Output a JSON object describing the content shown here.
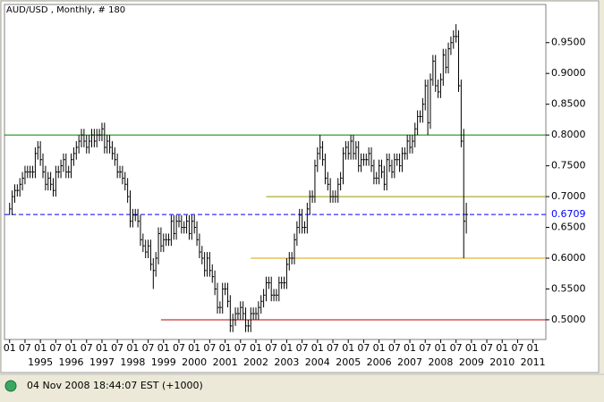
{
  "chart_data": {
    "type": "ohlc",
    "title": "AUD/USD , Monthly, # 180",
    "footer": "04 Nov 2008 18:44:07  EST (+1000)",
    "x": [
      "1994-01",
      "1994-02",
      "1994-03",
      "1994-04",
      "1994-05",
      "1994-06",
      "1994-07",
      "1994-08",
      "1994-09",
      "1994-10",
      "1994-11",
      "1994-12",
      "1995-01",
      "1995-02",
      "1995-03",
      "1995-04",
      "1995-05",
      "1995-06",
      "1995-07",
      "1995-08",
      "1995-09",
      "1995-10",
      "1995-11",
      "1995-12",
      "1996-01",
      "1996-02",
      "1996-03",
      "1996-04",
      "1996-05",
      "1996-06",
      "1996-07",
      "1996-08",
      "1996-09",
      "1996-10",
      "1996-11",
      "1996-12",
      "1997-01",
      "1997-02",
      "1997-03",
      "1997-04",
      "1997-05",
      "1997-06",
      "1997-07",
      "1997-08",
      "1997-09",
      "1997-10",
      "1997-11",
      "1997-12",
      "1998-01",
      "1998-02",
      "1998-03",
      "1998-04",
      "1998-05",
      "1998-06",
      "1998-07",
      "1998-08",
      "1998-09",
      "1998-10",
      "1998-11",
      "1998-12",
      "1999-01",
      "1999-02",
      "1999-03",
      "1999-04",
      "1999-05",
      "1999-06",
      "1999-07",
      "1999-08",
      "1999-09",
      "1999-10",
      "1999-11",
      "1999-12",
      "2000-01",
      "2000-02",
      "2000-03",
      "2000-04",
      "2000-05",
      "2000-06",
      "2000-07",
      "2000-08",
      "2000-09",
      "2000-10",
      "2000-11",
      "2000-12",
      "2001-01",
      "2001-02",
      "2001-03",
      "2001-04",
      "2001-05",
      "2001-06",
      "2001-07",
      "2001-08",
      "2001-09",
      "2001-10",
      "2001-11",
      "2001-12",
      "2002-01",
      "2002-02",
      "2002-03",
      "2002-04",
      "2002-05",
      "2002-06",
      "2002-07",
      "2002-08",
      "2002-09",
      "2002-10",
      "2002-11",
      "2002-12",
      "2003-01",
      "2003-02",
      "2003-03",
      "2003-04",
      "2003-05",
      "2003-06",
      "2003-07",
      "2003-08",
      "2003-09",
      "2003-10",
      "2003-11",
      "2003-12",
      "2004-01",
      "2004-02",
      "2004-03",
      "2004-04",
      "2004-05",
      "2004-06",
      "2004-07",
      "2004-08",
      "2004-09",
      "2004-10",
      "2004-11",
      "2004-12",
      "2005-01",
      "2005-02",
      "2005-03",
      "2005-04",
      "2005-05",
      "2005-06",
      "2005-07",
      "2005-08",
      "2005-09",
      "2005-10",
      "2005-11",
      "2005-12",
      "2006-01",
      "2006-02",
      "2006-03",
      "2006-04",
      "2006-05",
      "2006-06",
      "2006-07",
      "2006-08",
      "2006-09",
      "2006-10",
      "2006-11",
      "2006-12",
      "2007-01",
      "2007-02",
      "2007-03",
      "2007-04",
      "2007-05",
      "2007-06",
      "2007-07",
      "2007-08",
      "2007-09",
      "2007-10",
      "2007-11",
      "2007-12",
      "2008-01",
      "2008-02",
      "2008-03",
      "2008-04",
      "2008-05",
      "2008-06",
      "2008-07",
      "2008-08",
      "2008-09",
      "2008-10",
      "2008-11"
    ],
    "high": [
      0.69,
      0.71,
      0.72,
      0.72,
      0.73,
      0.74,
      0.75,
      0.75,
      0.75,
      0.75,
      0.78,
      0.79,
      0.79,
      0.77,
      0.75,
      0.74,
      0.74,
      0.73,
      0.75,
      0.75,
      0.76,
      0.77,
      0.77,
      0.75,
      0.77,
      0.78,
      0.79,
      0.8,
      0.81,
      0.81,
      0.8,
      0.8,
      0.81,
      0.81,
      0.81,
      0.81,
      0.82,
      0.82,
      0.8,
      0.8,
      0.79,
      0.78,
      0.77,
      0.75,
      0.75,
      0.74,
      0.73,
      0.71,
      0.68,
      0.68,
      0.68,
      0.67,
      0.64,
      0.63,
      0.63,
      0.63,
      0.6,
      0.61,
      0.65,
      0.65,
      0.64,
      0.64,
      0.64,
      0.67,
      0.67,
      0.67,
      0.67,
      0.67,
      0.66,
      0.67,
      0.67,
      0.67,
      0.67,
      0.66,
      0.64,
      0.62,
      0.61,
      0.61,
      0.61,
      0.59,
      0.58,
      0.56,
      0.53,
      0.56,
      0.56,
      0.56,
      0.54,
      0.51,
      0.52,
      0.52,
      0.53,
      0.53,
      0.52,
      0.5,
      0.52,
      0.52,
      0.52,
      0.53,
      0.54,
      0.55,
      0.57,
      0.57,
      0.57,
      0.55,
      0.55,
      0.57,
      0.57,
      0.57,
      0.6,
      0.61,
      0.61,
      0.64,
      0.66,
      0.68,
      0.68,
      0.66,
      0.69,
      0.71,
      0.71,
      0.76,
      0.78,
      0.8,
      0.79,
      0.77,
      0.74,
      0.73,
      0.71,
      0.71,
      0.73,
      0.74,
      0.78,
      0.79,
      0.79,
      0.8,
      0.8,
      0.79,
      0.79,
      0.77,
      0.77,
      0.77,
      0.78,
      0.78,
      0.76,
      0.74,
      0.76,
      0.76,
      0.75,
      0.77,
      0.77,
      0.76,
      0.77,
      0.77,
      0.77,
      0.78,
      0.78,
      0.8,
      0.8,
      0.8,
      0.82,
      0.84,
      0.84,
      0.86,
      0.89,
      0.89,
      0.9,
      0.93,
      0.93,
      0.89,
      0.9,
      0.94,
      0.94,
      0.95,
      0.96,
      0.97,
      0.98,
      0.97,
      0.89,
      0.81,
      0.69
    ],
    "low": [
      0.67,
      0.67,
      0.69,
      0.7,
      0.7,
      0.71,
      0.72,
      0.73,
      0.73,
      0.73,
      0.73,
      0.76,
      0.75,
      0.73,
      0.71,
      0.71,
      0.71,
      0.7,
      0.7,
      0.73,
      0.73,
      0.74,
      0.73,
      0.73,
      0.73,
      0.75,
      0.76,
      0.77,
      0.78,
      0.78,
      0.77,
      0.77,
      0.78,
      0.78,
      0.78,
      0.79,
      0.79,
      0.77,
      0.77,
      0.77,
      0.76,
      0.75,
      0.73,
      0.73,
      0.72,
      0.71,
      0.69,
      0.65,
      0.65,
      0.66,
      0.65,
      0.62,
      0.61,
      0.6,
      0.6,
      0.58,
      0.55,
      0.57,
      0.59,
      0.61,
      0.61,
      0.62,
      0.62,
      0.62,
      0.63,
      0.63,
      0.65,
      0.64,
      0.64,
      0.64,
      0.63,
      0.63,
      0.64,
      0.62,
      0.6,
      0.59,
      0.57,
      0.57,
      0.57,
      0.56,
      0.54,
      0.51,
      0.51,
      0.51,
      0.54,
      0.52,
      0.48,
      0.48,
      0.49,
      0.5,
      0.5,
      0.5,
      0.48,
      0.48,
      0.48,
      0.5,
      0.5,
      0.5,
      0.51,
      0.52,
      0.53,
      0.55,
      0.53,
      0.53,
      0.53,
      0.53,
      0.55,
      0.55,
      0.55,
      0.58,
      0.59,
      0.59,
      0.62,
      0.64,
      0.64,
      0.64,
      0.64,
      0.67,
      0.69,
      0.69,
      0.74,
      0.76,
      0.75,
      0.72,
      0.71,
      0.69,
      0.69,
      0.69,
      0.69,
      0.71,
      0.72,
      0.76,
      0.76,
      0.76,
      0.76,
      0.76,
      0.74,
      0.74,
      0.75,
      0.75,
      0.75,
      0.74,
      0.72,
      0.72,
      0.72,
      0.73,
      0.71,
      0.71,
      0.74,
      0.73,
      0.73,
      0.75,
      0.74,
      0.74,
      0.76,
      0.76,
      0.77,
      0.77,
      0.78,
      0.8,
      0.82,
      0.82,
      0.84,
      0.8,
      0.81,
      0.88,
      0.87,
      0.86,
      0.86,
      0.88,
      0.9,
      0.9,
      0.93,
      0.94,
      0.95,
      0.87,
      0.78,
      0.6,
      0.64
    ],
    "close": [
      0.68,
      0.7,
      0.71,
      0.71,
      0.72,
      0.73,
      0.74,
      0.74,
      0.74,
      0.74,
      0.77,
      0.78,
      0.76,
      0.74,
      0.72,
      0.73,
      0.72,
      0.71,
      0.74,
      0.74,
      0.75,
      0.76,
      0.74,
      0.74,
      0.76,
      0.77,
      0.78,
      0.79,
      0.8,
      0.79,
      0.78,
      0.79,
      0.8,
      0.79,
      0.8,
      0.8,
      0.81,
      0.78,
      0.79,
      0.78,
      0.77,
      0.76,
      0.74,
      0.74,
      0.73,
      0.72,
      0.7,
      0.66,
      0.67,
      0.67,
      0.66,
      0.63,
      0.62,
      0.61,
      0.62,
      0.59,
      0.58,
      0.6,
      0.64,
      0.62,
      0.63,
      0.63,
      0.63,
      0.66,
      0.64,
      0.66,
      0.66,
      0.65,
      0.65,
      0.66,
      0.64,
      0.66,
      0.65,
      0.63,
      0.61,
      0.6,
      0.58,
      0.6,
      0.58,
      0.57,
      0.55,
      0.52,
      0.52,
      0.55,
      0.55,
      0.53,
      0.49,
      0.5,
      0.51,
      0.51,
      0.52,
      0.51,
      0.49,
      0.49,
      0.51,
      0.51,
      0.51,
      0.52,
      0.53,
      0.54,
      0.56,
      0.56,
      0.54,
      0.54,
      0.54,
      0.56,
      0.56,
      0.56,
      0.59,
      0.6,
      0.6,
      0.63,
      0.65,
      0.67,
      0.65,
      0.65,
      0.68,
      0.7,
      0.7,
      0.75,
      0.77,
      0.78,
      0.76,
      0.73,
      0.72,
      0.7,
      0.7,
      0.7,
      0.72,
      0.73,
      0.77,
      0.78,
      0.77,
      0.79,
      0.77,
      0.78,
      0.75,
      0.76,
      0.76,
      0.76,
      0.77,
      0.75,
      0.73,
      0.73,
      0.75,
      0.74,
      0.72,
      0.76,
      0.75,
      0.74,
      0.76,
      0.76,
      0.75,
      0.77,
      0.77,
      0.79,
      0.78,
      0.79,
      0.81,
      0.83,
      0.83,
      0.85,
      0.88,
      0.82,
      0.89,
      0.92,
      0.88,
      0.87,
      0.89,
      0.93,
      0.91,
      0.94,
      0.95,
      0.96,
      0.96,
      0.88,
      0.79,
      0.66,
      0.6709
    ],
    "bar_color": "#000000",
    "xlim": [
      "1993-11",
      "2011-06"
    ],
    "xticks": [
      {
        "value": "1994-01",
        "label": "01"
      },
      {
        "value": "1994-07",
        "label": "07"
      },
      {
        "value": "1995-01",
        "label": "01"
      },
      {
        "value": "1995-07",
        "label": "07"
      },
      {
        "value": "1996-01",
        "label": "01"
      },
      {
        "value": "1996-07",
        "label": "07"
      },
      {
        "value": "1997-01",
        "label": "01"
      },
      {
        "value": "1997-07",
        "label": "07"
      },
      {
        "value": "1998-01",
        "label": "01"
      },
      {
        "value": "1998-07",
        "label": "07"
      },
      {
        "value": "1999-01",
        "label": "01"
      },
      {
        "value": "1999-07",
        "label": "07"
      },
      {
        "value": "2000-01",
        "label": "01"
      },
      {
        "value": "2000-07",
        "label": "07"
      },
      {
        "value": "2001-01",
        "label": "01"
      },
      {
        "value": "2001-07",
        "label": "07"
      },
      {
        "value": "2002-01",
        "label": "01"
      },
      {
        "value": "2002-07",
        "label": "07"
      },
      {
        "value": "2003-01",
        "label": "01"
      },
      {
        "value": "2003-07",
        "label": "07"
      },
      {
        "value": "2004-01",
        "label": "01"
      },
      {
        "value": "2004-07",
        "label": "07"
      },
      {
        "value": "2005-01",
        "label": "01"
      },
      {
        "value": "2005-07",
        "label": "07"
      },
      {
        "value": "2006-01",
        "label": "01"
      },
      {
        "value": "2006-07",
        "label": "07"
      },
      {
        "value": "2007-01",
        "label": "01"
      },
      {
        "value": "2007-07",
        "label": "07"
      },
      {
        "value": "2008-01",
        "label": "01"
      },
      {
        "value": "2008-07",
        "label": "07"
      },
      {
        "value": "2009-01",
        "label": "01"
      },
      {
        "value": "2009-07",
        "label": "07"
      },
      {
        "value": "2010-01",
        "label": "01"
      },
      {
        "value": "2010-07",
        "label": "07"
      },
      {
        "value": "2011-01",
        "label": "01"
      }
    ],
    "year_ticks": [
      {
        "value": "1995-01",
        "label": "1995"
      },
      {
        "value": "1996-01",
        "label": "1996"
      },
      {
        "value": "1997-01",
        "label": "1997"
      },
      {
        "value": "1998-01",
        "label": "1998"
      },
      {
        "value": "1999-01",
        "label": "1999"
      },
      {
        "value": "2000-01",
        "label": "2000"
      },
      {
        "value": "2001-01",
        "label": "2001"
      },
      {
        "value": "2002-01",
        "label": "2002"
      },
      {
        "value": "2003-01",
        "label": "2003"
      },
      {
        "value": "2004-01",
        "label": "2004"
      },
      {
        "value": "2005-01",
        "label": "2005"
      },
      {
        "value": "2006-01",
        "label": "2006"
      },
      {
        "value": "2007-01",
        "label": "2007"
      },
      {
        "value": "2008-01",
        "label": "2008"
      },
      {
        "value": "2009-01",
        "label": "2009"
      },
      {
        "value": "2010-01",
        "label": "2010"
      },
      {
        "value": "2011-01",
        "label": "2011"
      }
    ],
    "ylim": [
      0.468,
      1.012
    ],
    "yticks": [
      {
        "value": 0.5,
        "label": "0.5000"
      },
      {
        "value": 0.55,
        "label": "0.5500"
      },
      {
        "value": 0.6,
        "label": "0.6000"
      },
      {
        "value": 0.65,
        "label": "0.6500"
      },
      {
        "value": 0.7,
        "label": "0.7000"
      },
      {
        "value": 0.75,
        "label": "0.7500"
      },
      {
        "value": 0.8,
        "label": "0.8000"
      },
      {
        "value": 0.85,
        "label": "0.8500"
      },
      {
        "value": 0.9,
        "label": "0.9000"
      },
      {
        "value": 0.95,
        "label": "0.9500"
      }
    ],
    "last_price": {
      "value": 0.6709,
      "color": "#0000ff"
    },
    "hlines": [
      {
        "value": 0.8,
        "color": "#008000",
        "start": "1993-11"
      },
      {
        "value": 0.7,
        "color": "#999900",
        "start": "2002-05"
      },
      {
        "value": 0.6,
        "color": "#e0a000",
        "start": "2001-11"
      },
      {
        "value": 0.5,
        "color": "#c00000",
        "start": "1998-12"
      }
    ]
  }
}
